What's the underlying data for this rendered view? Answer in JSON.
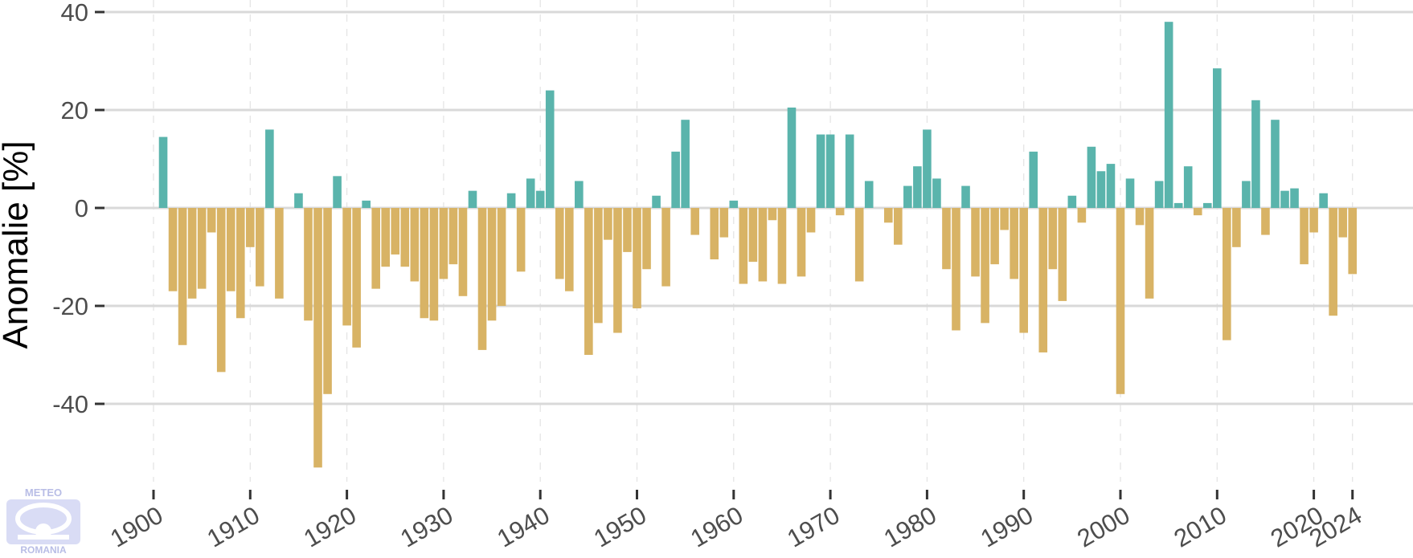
{
  "chart_data": {
    "type": "bar",
    "title": "",
    "xlabel": "",
    "ylabel": "Anomalie [%]",
    "xlim": [
      1897,
      2031
    ],
    "ylim": [
      -55,
      42
    ],
    "y_ticks": [
      -40,
      -20,
      0,
      20,
      40
    ],
    "x_ticks": [
      1900,
      1910,
      1920,
      1930,
      1940,
      1950,
      1960,
      1970,
      1980,
      1990,
      2000,
      2010,
      2020,
      2024
    ],
    "grid": true,
    "colors": {
      "positive": "#5ab4ac",
      "negative": "#d8b365",
      "grid": "#d9d9d9",
      "axis_text": "#4d4d4d"
    },
    "x": [
      1901,
      1902,
      1903,
      1904,
      1905,
      1906,
      1907,
      1908,
      1909,
      1910,
      1911,
      1912,
      1913,
      1914,
      1915,
      1916,
      1917,
      1918,
      1919,
      1920,
      1921,
      1922,
      1923,
      1924,
      1925,
      1926,
      1927,
      1928,
      1929,
      1930,
      1931,
      1932,
      1933,
      1934,
      1935,
      1936,
      1937,
      1938,
      1939,
      1940,
      1941,
      1942,
      1943,
      1944,
      1945,
      1946,
      1947,
      1948,
      1949,
      1950,
      1951,
      1952,
      1953,
      1954,
      1955,
      1956,
      1957,
      1958,
      1959,
      1960,
      1961,
      1962,
      1963,
      1964,
      1965,
      1966,
      1967,
      1968,
      1969,
      1970,
      1971,
      1972,
      1973,
      1974,
      1975,
      1976,
      1977,
      1978,
      1979,
      1980,
      1981,
      1982,
      1983,
      1984,
      1985,
      1986,
      1987,
      1988,
      1989,
      1990,
      1991,
      1992,
      1993,
      1994,
      1995,
      1996,
      1997,
      1998,
      1999,
      2000,
      2001,
      2002,
      2003,
      2004,
      2005,
      2006,
      2007,
      2008,
      2009,
      2010,
      2011,
      2012,
      2013,
      2014,
      2015,
      2016,
      2017,
      2018,
      2019,
      2020,
      2021,
      2022,
      2023,
      2024
    ],
    "values": [
      14.5,
      -17,
      -28,
      -18.5,
      -16.5,
      -5,
      -33.5,
      -17,
      -22.5,
      -8,
      -16,
      16,
      -18.5,
      0,
      3,
      -23,
      -53,
      -38,
      6.5,
      -24,
      -28.5,
      1.5,
      -16.5,
      -12,
      -9.5,
      -12,
      -15,
      -22.5,
      -23,
      -14.5,
      -11.5,
      -18,
      3.5,
      -29,
      -23,
      -20,
      3,
      -13,
      6,
      3.5,
      24,
      -14.5,
      -17,
      5.5,
      -30,
      -23.5,
      -6.5,
      -25.5,
      -9,
      -20.5,
      -12.5,
      2.5,
      -16,
      11.5,
      18,
      -5.5,
      0,
      -10.5,
      -6,
      1.5,
      -15.5,
      -11,
      -15,
      -2.5,
      -15.5,
      20.5,
      -14,
      -5,
      15,
      15,
      -1.5,
      15,
      -15,
      5.5,
      0,
      -3,
      -7.5,
      4.5,
      8.5,
      16,
      6,
      -12.5,
      -25,
      4.5,
      -14,
      -23.5,
      -11.5,
      -4.5,
      -14.5,
      -25.5,
      11.5,
      -29.5,
      -12.5,
      -19,
      2.5,
      -3,
      12.5,
      7.5,
      9,
      -38,
      6,
      -3.5,
      -18.5,
      5.5,
      38,
      1,
      8.5,
      -1.5,
      1,
      28.5,
      -27,
      -8,
      5.5,
      22,
      -5.5,
      18,
      3.5,
      4,
      -11.5,
      -5,
      3,
      -22,
      -6,
      -13.5
    ]
  },
  "logo": {
    "top_text": "METEO",
    "bottom_text": "ROMANIA"
  }
}
